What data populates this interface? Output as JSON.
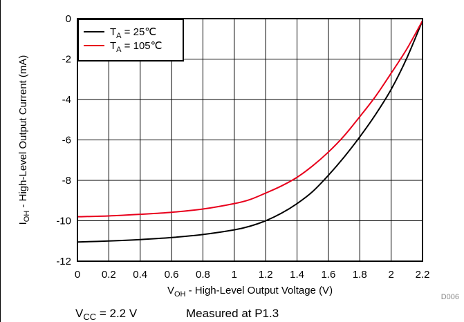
{
  "chart_data": {
    "type": "line",
    "xlabel": {
      "main": "V",
      "sub": "OH",
      "rest": " - High-Level Output Voltage (V)"
    },
    "ylabel": {
      "main": "I",
      "sub": "OH",
      "rest": " - High-Level Output Current (mA)"
    },
    "xlim": [
      0,
      2.2
    ],
    "ylim": [
      -12,
      0
    ],
    "xticks": [
      0,
      0.2,
      0.4,
      0.6,
      0.8,
      1,
      1.2,
      1.4,
      1.6,
      1.8,
      2,
      2.2
    ],
    "xtick_labels": [
      "0",
      "0.2",
      "0.4",
      "0.6",
      "0.8",
      "1",
      "1.2",
      "1.4",
      "1.6",
      "1.8",
      "2",
      "2.2"
    ],
    "yticks": [
      0,
      -2,
      -4,
      -6,
      -8,
      -10,
      -12
    ],
    "ytick_labels": [
      "0",
      "-2",
      "-4",
      "-6",
      "-8",
      "-10",
      "-12"
    ],
    "grid": true,
    "legend_position": "top-left",
    "series": [
      {
        "name": {
          "main": "T",
          "sub": "A",
          "rest": " = 25℃"
        },
        "color": "#000000",
        "points": [
          [
            0,
            -11.05
          ],
          [
            0.2,
            -11.0
          ],
          [
            0.4,
            -10.93
          ],
          [
            0.6,
            -10.83
          ],
          [
            0.8,
            -10.68
          ],
          [
            1.0,
            -10.45
          ],
          [
            1.1,
            -10.27
          ],
          [
            1.2,
            -10.0
          ],
          [
            1.3,
            -9.63
          ],
          [
            1.4,
            -9.15
          ],
          [
            1.5,
            -8.55
          ],
          [
            1.6,
            -7.75
          ],
          [
            1.7,
            -6.85
          ],
          [
            1.8,
            -5.85
          ],
          [
            1.9,
            -4.75
          ],
          [
            2.0,
            -3.5
          ],
          [
            2.1,
            -1.95
          ],
          [
            2.2,
            -0.1
          ]
        ]
      },
      {
        "name": {
          "main": "T",
          "sub": "A",
          "rest": " = 105℃"
        },
        "color": "#e8001c",
        "points": [
          [
            0,
            -9.8
          ],
          [
            0.2,
            -9.76
          ],
          [
            0.4,
            -9.68
          ],
          [
            0.6,
            -9.58
          ],
          [
            0.8,
            -9.42
          ],
          [
            1.0,
            -9.15
          ],
          [
            1.1,
            -8.95
          ],
          [
            1.2,
            -8.63
          ],
          [
            1.3,
            -8.28
          ],
          [
            1.4,
            -7.85
          ],
          [
            1.5,
            -7.28
          ],
          [
            1.6,
            -6.6
          ],
          [
            1.7,
            -5.8
          ],
          [
            1.8,
            -4.85
          ],
          [
            1.9,
            -3.85
          ],
          [
            2.0,
            -2.7
          ],
          [
            2.1,
            -1.5
          ],
          [
            2.2,
            -0.1
          ]
        ]
      }
    ]
  },
  "figure_code": "D006",
  "conditions": {
    "vcc": {
      "main": "V",
      "sub": "CC",
      "rest": " = 2.2 V"
    },
    "measured": "Measured at P1.3"
  }
}
